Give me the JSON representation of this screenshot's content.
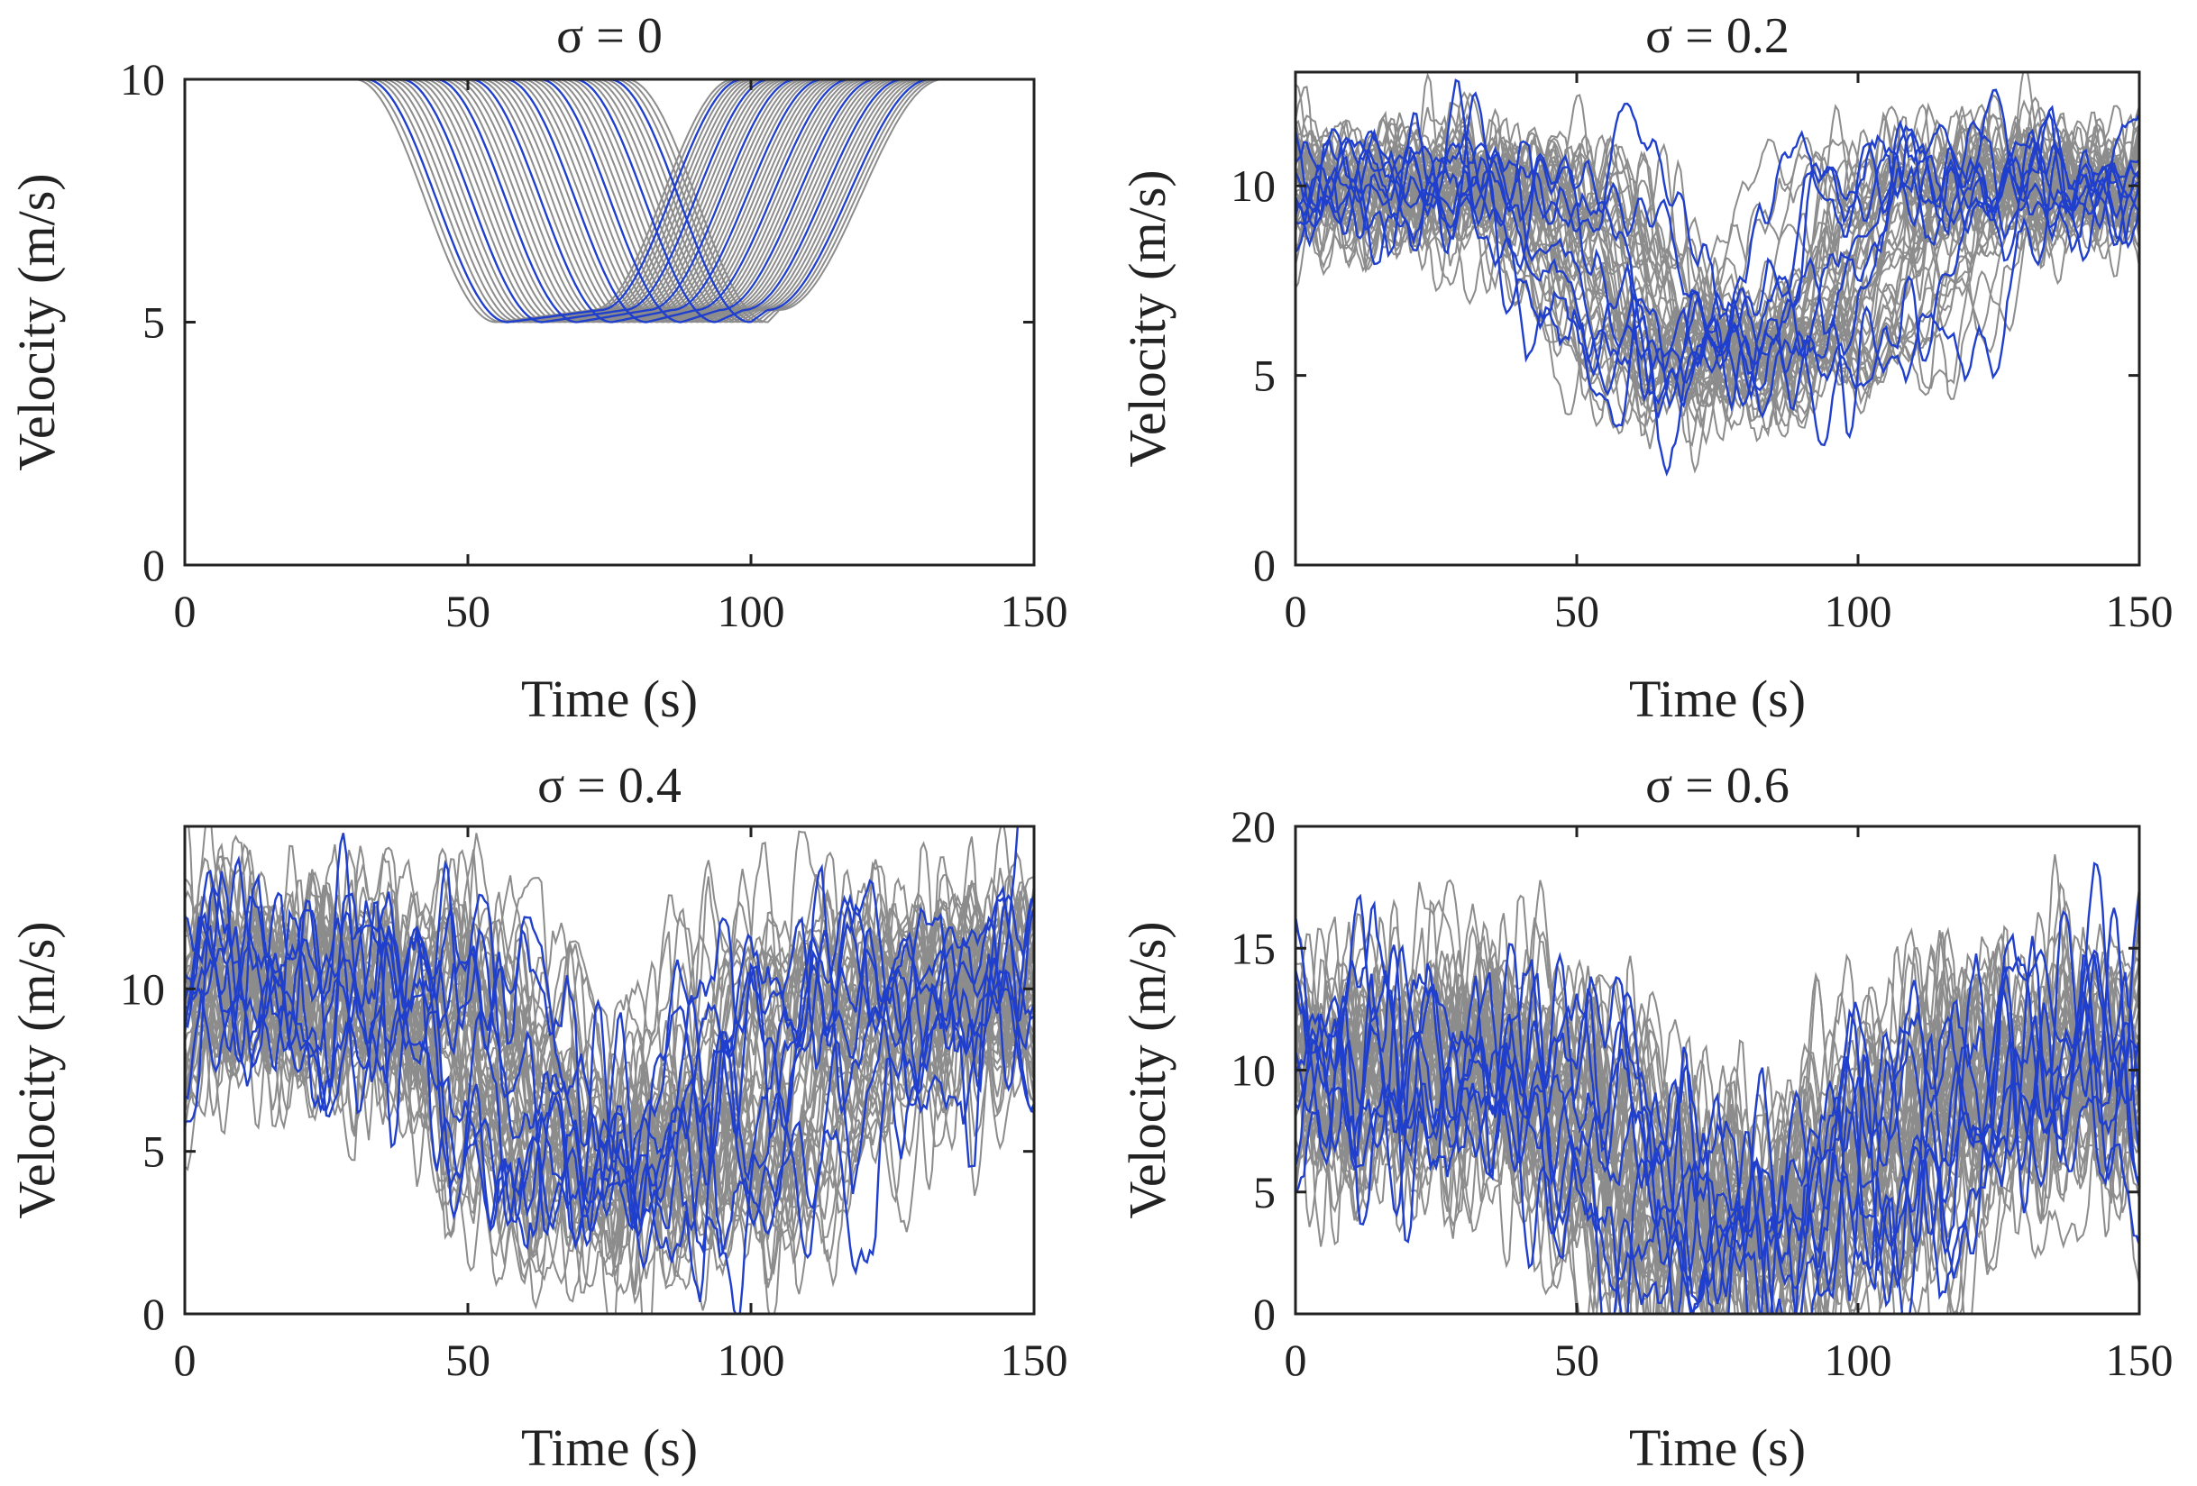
{
  "chart_data": [
    {
      "type": "line",
      "title": "σ = 0",
      "sigma": 0,
      "xlabel": "Time (s)",
      "ylabel": "Velocity (m/s)",
      "xlim": [
        0,
        150
      ],
      "ylim": [
        0,
        10
      ],
      "xticks": [
        "0",
        "50",
        "100",
        "150"
      ],
      "yticks": [
        "0",
        "5",
        "10"
      ],
      "n_gray_series": 40,
      "n_blue_series": 8,
      "base_velocity": 10,
      "min_velocity": 5,
      "dip_start_range_s": [
        30,
        80
      ],
      "dip_end_range_s": [
        100,
        150
      ],
      "series_colors": {
        "background": "#8c8c8c",
        "highlighted": "#1f3fcc"
      }
    },
    {
      "type": "line",
      "title": "σ = 0.2",
      "sigma": 0.2,
      "xlabel": "Time (s)",
      "ylabel": "Velocity (m/s)",
      "xlim": [
        0,
        150
      ],
      "ylim": [
        0,
        13
      ],
      "xticks": [
        "0",
        "50",
        "100",
        "150"
      ],
      "yticks": [
        "0",
        "5",
        "10"
      ],
      "n_gray_series": 40,
      "n_blue_series": 8,
      "base_velocity": 10,
      "min_velocity": 4.5,
      "series_colors": {
        "background": "#8c8c8c",
        "highlighted": "#1f3fcc"
      }
    },
    {
      "type": "line",
      "title": "σ = 0.4",
      "sigma": 0.4,
      "xlabel": "Time (s)",
      "ylabel": "Velocity (m/s)",
      "xlim": [
        0,
        150
      ],
      "ylim": [
        0,
        15
      ],
      "xticks": [
        "0",
        "50",
        "100",
        "150"
      ],
      "yticks": [
        "0",
        "5",
        "10"
      ],
      "n_gray_series": 40,
      "n_blue_series": 8,
      "base_velocity": 10,
      "min_velocity": 3.5,
      "series_colors": {
        "background": "#8c8c8c",
        "highlighted": "#1f3fcc"
      }
    },
    {
      "type": "line",
      "title": "σ = 0.6",
      "sigma": 0.6,
      "xlabel": "Time (s)",
      "ylabel": "Velocity (m/s)",
      "xlim": [
        0,
        150
      ],
      "ylim": [
        0,
        20
      ],
      "xticks": [
        "0",
        "50",
        "100",
        "150"
      ],
      "yticks": [
        "0",
        "5",
        "10",
        "15",
        "20"
      ],
      "n_gray_series": 40,
      "n_blue_series": 8,
      "base_velocity": 10,
      "min_velocity": 2.5,
      "series_colors": {
        "background": "#8c8c8c",
        "highlighted": "#1f3fcc"
      }
    }
  ]
}
